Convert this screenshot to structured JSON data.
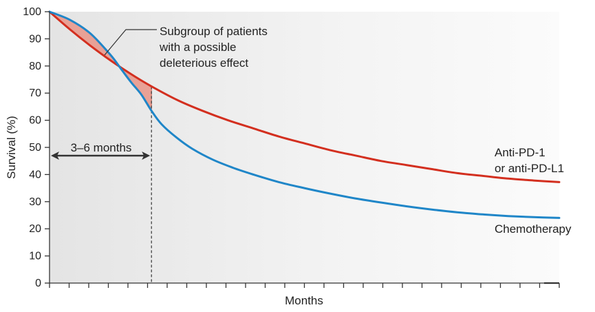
{
  "chart_data": {
    "type": "line",
    "title": "",
    "xlabel": "Months",
    "ylabel": "Survival (%)",
    "ylim": [
      0,
      100
    ],
    "xlim": [
      0,
      100
    ],
    "yticks": [
      "0",
      "10",
      "20",
      "30",
      "40",
      "50",
      "60",
      "70",
      "80",
      "90",
      "100"
    ],
    "x_tick_count": 27,
    "series": [
      {
        "name": "Anti-PD-1 or anti-PD-L1",
        "label_lines": [
          "Anti-PD-1",
          "or anti-PD-L1"
        ],
        "color": "#d32f1f",
        "x": [
          0,
          4,
          8,
          12,
          16,
          20,
          25,
          30,
          35,
          40,
          45,
          50,
          55,
          60,
          65,
          70,
          75,
          80,
          85,
          90,
          95,
          100
        ],
        "values": [
          100,
          93.5,
          87.5,
          82,
          77,
          72.5,
          67.5,
          63.5,
          60,
          57,
          54,
          51.5,
          49,
          47,
          45,
          43.5,
          42,
          40.5,
          39.5,
          38.5,
          37.8,
          37.2
        ]
      },
      {
        "name": "Chemotherapy",
        "label_lines": [
          "Chemotherapy"
        ],
        "color": "#1f86c8",
        "x": [
          0,
          4,
          8,
          12,
          14,
          16,
          18,
          20,
          22,
          25,
          28,
          32,
          36,
          40,
          45,
          50,
          55,
          60,
          65,
          70,
          75,
          80,
          85,
          90,
          95,
          100
        ],
        "values": [
          100,
          97,
          92,
          84,
          79,
          74,
          69.5,
          63.5,
          58.5,
          53.5,
          49.5,
          45.5,
          42.5,
          40,
          37.2,
          35,
          33,
          31.2,
          29.7,
          28.3,
          27.1,
          26.1,
          25.3,
          24.7,
          24.3,
          24
        ]
      }
    ],
    "annotations": {
      "shaded_region": {
        "label_lines": [
          "Subgroup of patients",
          "with a possible",
          "deleterious effect"
        ],
        "fill": "#e8a196",
        "x_range": [
          0,
          20
        ]
      },
      "span_marker": {
        "label": "3–6 months",
        "x_start": 0,
        "x_end": 20
      },
      "crossover_line": {
        "x": 20
      }
    },
    "background": "#efefef"
  }
}
